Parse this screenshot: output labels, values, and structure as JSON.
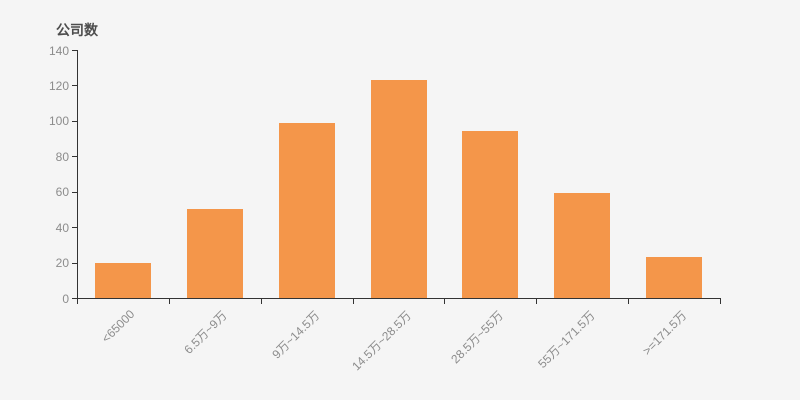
{
  "page": {
    "background_color": "#f5f5f5"
  },
  "chart_data": {
    "type": "bar",
    "title": "公司数",
    "ylabel": "公司数",
    "xlabel": "",
    "categories": [
      "<65000",
      "6.5万~9万",
      "9万~14.5万",
      "14.5万~28.5万",
      "28.5万~55万",
      "55万~171.5万",
      ">=171.5万"
    ],
    "values": [
      20,
      50,
      99,
      123,
      94,
      59,
      23
    ],
    "ylim": [
      0,
      140
    ],
    "ytick_step": 20,
    "ytick_labels": [
      "0",
      "20",
      "40",
      "60",
      "80",
      "100",
      "120",
      "140"
    ],
    "x_label_rotation_deg": 45,
    "grid": false,
    "legend": null,
    "colors": {
      "bar": "#f4964a",
      "axis": "#333333",
      "tick_label": "#8c8c8c",
      "title": "#4d4d4d",
      "background": "#f5f5f5"
    }
  }
}
